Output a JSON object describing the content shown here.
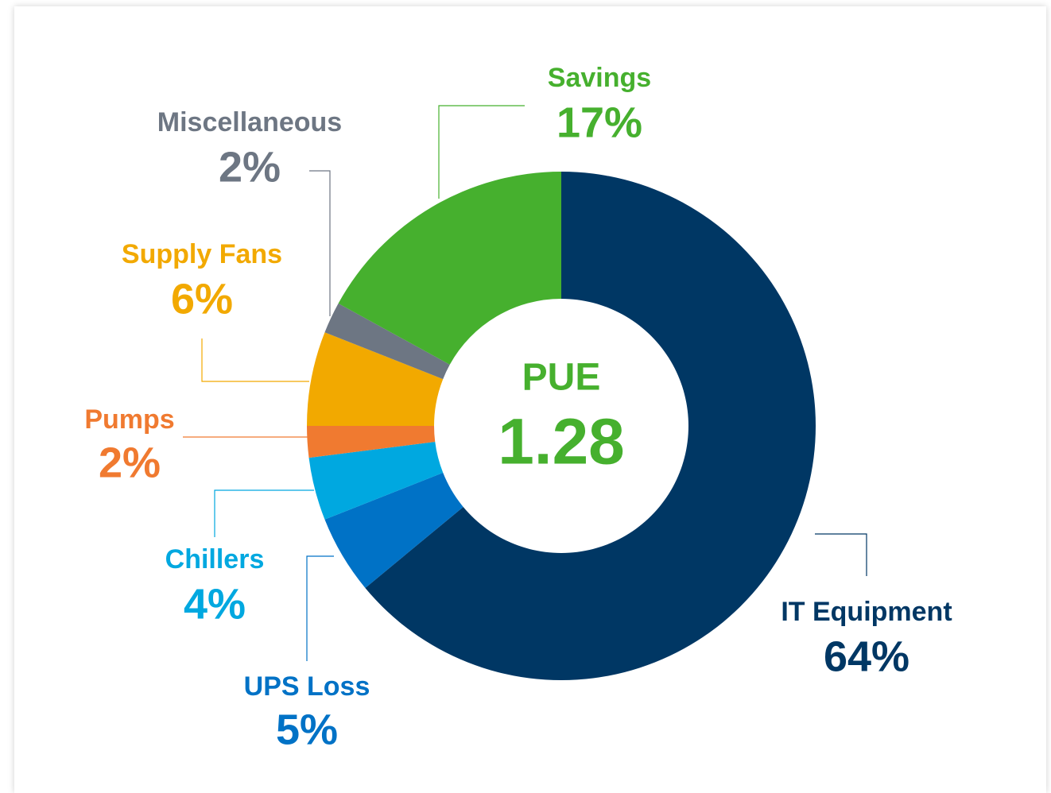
{
  "chart_data": {
    "type": "donut",
    "center_title": "PUE",
    "center_value": "1.28",
    "categories": [
      "IT Equipment",
      "UPS Loss",
      "Chillers",
      "Pumps",
      "Supply Fans",
      "Miscellaneous",
      "Savings"
    ],
    "values": [
      64,
      5,
      4,
      2,
      6,
      2,
      17
    ],
    "value_labels": [
      "64%",
      "5%",
      "4%",
      "2%",
      "6%",
      "2%",
      "17%"
    ],
    "colors": [
      "#003764",
      "#0072c6",
      "#00a8e0",
      "#f07a30",
      "#f2a900",
      "#6d7683",
      "#46b02e"
    ],
    "center_color": "#46b02e"
  }
}
